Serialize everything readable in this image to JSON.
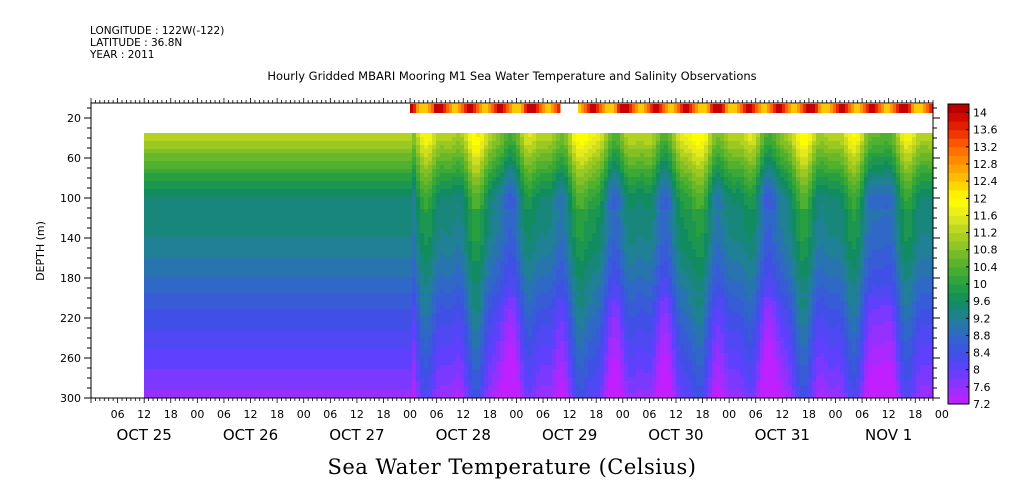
{
  "header": {
    "longitude": "LONGITUDE : 122W(-122)",
    "latitude": "LATITUDE : 36.8N",
    "year": "YEAR : 2011"
  },
  "chart_data": {
    "type": "heatmap",
    "title": "Hourly Gridded MBARI Mooring M1 Sea Water Temperature and Salinity Observations",
    "xlabel": "",
    "ylabel": "DEPTH (m)",
    "footer": "Sea Water Temperature (Celsius)",
    "y_ticks": [
      "20",
      "60",
      "100",
      "140",
      "180",
      "220",
      "260",
      "300"
    ],
    "y_range": [
      300,
      5
    ],
    "x_hour_ticks": [
      "06",
      "12",
      "18",
      "00",
      "06",
      "12",
      "18",
      "00",
      "06",
      "12",
      "18",
      "00",
      "06",
      "12",
      "18",
      "00",
      "06",
      "12",
      "18",
      "00",
      "06",
      "12",
      "18",
      "00",
      "06",
      "12",
      "18",
      "00",
      "06",
      "12",
      "18",
      "00"
    ],
    "x_date_labels": [
      "OCT 25",
      "OCT 26",
      "OCT 27",
      "OCT 28",
      "OCT 29",
      "OCT 30",
      "OCT 31",
      "NOV  1"
    ],
    "x_range_hours_from_oct25_00": [
      0,
      190
    ],
    "data_start_hour": 12,
    "surface_data_start_hour": 72,
    "surface_gap_hours": [
      106,
      110
    ],
    "colorbar_labels": [
      "14",
      "13.6",
      "13.2",
      "12.8",
      "12.4",
      "12",
      "11.6",
      "11.2",
      "10.8",
      "10.4",
      "10",
      "9.6",
      "9.2",
      "8.8",
      "8.4",
      "8",
      "7.6",
      "7.2"
    ],
    "colorbar_range": [
      7.2,
      14.2
    ],
    "surface_temperature_range": [
      12.4,
      14
    ],
    "temperature_depth_profile": [
      {
        "depth": 40,
        "temp": 11.2
      },
      {
        "depth": 60,
        "temp": 10.6
      },
      {
        "depth": 80,
        "temp": 10.0
      },
      {
        "depth": 100,
        "temp": 9.5
      },
      {
        "depth": 140,
        "temp": 9.3
      },
      {
        "depth": 180,
        "temp": 8.9
      },
      {
        "depth": 220,
        "temp": 8.4
      },
      {
        "depth": 260,
        "temp": 8.0
      },
      {
        "depth": 290,
        "temp": 7.7
      }
    ]
  }
}
